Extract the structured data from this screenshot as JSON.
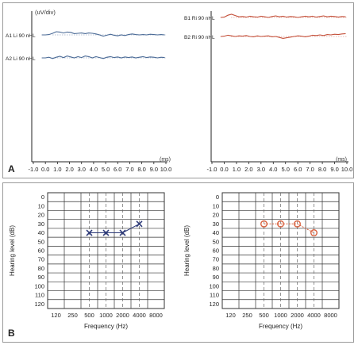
{
  "figure": {
    "panel_a_label": "A",
    "panel_b_label": "B"
  },
  "chart_data": [
    {
      "type": "line",
      "panel": "A",
      "side": "left",
      "ylabel": "(uV/div)",
      "xlabel": "(ms)",
      "x_ticks": [
        "-1.0",
        "0.0",
        "1.0",
        "2.0",
        "3.0",
        "4.0",
        "5.0",
        "6.0",
        "7.0",
        "8.0",
        "9.0",
        "10.0"
      ],
      "xlim": [
        -1.0,
        10.0
      ],
      "color": "#4a6a96",
      "series": [
        {
          "name": "A1 Li 90 nHL",
          "x": [
            -0.3,
            0.0,
            0.3,
            0.6,
            0.9,
            1.2,
            1.5,
            1.8,
            2.1,
            2.4,
            2.7,
            3.0,
            3.3,
            3.6,
            3.9,
            4.2,
            4.5,
            4.8,
            5.1,
            5.4,
            5.7,
            6.0,
            6.3,
            6.6,
            6.9,
            7.2,
            7.5,
            7.8,
            8.1,
            8.4,
            8.7,
            9.0,
            9.3,
            9.6,
            9.9
          ],
          "y": [
            0,
            0,
            0.05,
            0.25,
            0.5,
            0.45,
            0.3,
            0.45,
            0.4,
            0.2,
            0.25,
            0.3,
            0.2,
            0.3,
            0.25,
            0.15,
            0.0,
            -0.2,
            -0.05,
            0.1,
            -0.05,
            -0.15,
            0.0,
            -0.1,
            0.05,
            0.15,
            0.05,
            0.0,
            0.05,
            0.0,
            0.1,
            0.05,
            0.0,
            0.05,
            0.0
          ]
        },
        {
          "name": "A2 Li 90 nHL",
          "x": [
            -0.3,
            0.0,
            0.3,
            0.6,
            0.9,
            1.2,
            1.5,
            1.8,
            2.1,
            2.4,
            2.7,
            3.0,
            3.3,
            3.6,
            3.9,
            4.2,
            4.5,
            4.8,
            5.1,
            5.4,
            5.7,
            6.0,
            6.3,
            6.6,
            6.9,
            7.2,
            7.5,
            7.8,
            8.1,
            8.4,
            8.7,
            9.0,
            9.3,
            9.6,
            9.9
          ],
          "y": [
            0,
            0,
            0.1,
            -0.1,
            0.1,
            0.25,
            0.05,
            0.3,
            0.15,
            0.0,
            0.2,
            0.05,
            0.3,
            0.2,
            0.0,
            0.2,
            0.05,
            -0.1,
            0.1,
            0.2,
            0.05,
            0.15,
            0.0,
            0.15,
            0.05,
            0.15,
            0.0,
            0.1,
            0.2,
            0.05,
            0.15,
            0.1,
            0.0,
            0.1,
            0.05
          ]
        }
      ]
    },
    {
      "type": "line",
      "panel": "A",
      "side": "right",
      "xlabel": "(ms)",
      "x_ticks": [
        "-1.0",
        "0.0",
        "1.0",
        "2.0",
        "3.0",
        "4.0",
        "5.0",
        "6.0",
        "7.0",
        "8.0",
        "9.0",
        "10.0"
      ],
      "xlim": [
        -1.0,
        10.0
      ],
      "color": "#c4503a",
      "series": [
        {
          "name": "B1 Ri 90 nHL",
          "x": [
            -0.3,
            0.0,
            0.3,
            0.6,
            0.9,
            1.2,
            1.5,
            1.8,
            2.1,
            2.4,
            2.7,
            3.0,
            3.3,
            3.6,
            3.9,
            4.2,
            4.5,
            4.8,
            5.1,
            5.4,
            5.7,
            6.0,
            6.3,
            6.6,
            6.9,
            7.2,
            7.5,
            7.8,
            8.1,
            8.4,
            8.7,
            9.0,
            9.3,
            9.6,
            9.9
          ],
          "y": [
            0,
            0.05,
            0.35,
            0.5,
            0.3,
            0.1,
            0.15,
            0.05,
            0.2,
            0.1,
            0.05,
            0.2,
            0.1,
            0.0,
            0.15,
            0.25,
            0.1,
            0.2,
            0.05,
            0.15,
            0.1,
            0.0,
            0.1,
            0.2,
            0.1,
            0.2,
            0.05,
            0.15,
            0.25,
            0.1,
            0.2,
            0.15,
            0.05,
            0.15,
            0.1
          ]
        },
        {
          "name": "B2 Ri 90 nHL",
          "x": [
            -0.3,
            0.0,
            0.3,
            0.6,
            0.9,
            1.2,
            1.5,
            1.8,
            2.1,
            2.4,
            2.7,
            3.0,
            3.3,
            3.6,
            3.9,
            4.2,
            4.5,
            4.8,
            5.1,
            5.4,
            5.7,
            6.0,
            6.3,
            6.6,
            6.9,
            7.2,
            7.5,
            7.8,
            8.1,
            8.4,
            8.7,
            9.0,
            9.3,
            9.6,
            9.9
          ],
          "y": [
            0,
            0.05,
            0.2,
            0.1,
            0.0,
            0.1,
            0.05,
            0.15,
            0.0,
            -0.05,
            0.1,
            0.0,
            0.05,
            0.1,
            -0.05,
            0.0,
            -0.15,
            -0.3,
            -0.2,
            -0.1,
            0.0,
            0.1,
            0.05,
            -0.05,
            0.05,
            0.2,
            0.15,
            0.25,
            0.15,
            0.3,
            0.25,
            0.35,
            0.3,
            0.4,
            0.45
          ]
        }
      ]
    },
    {
      "type": "scatter",
      "panel": "B",
      "side": "left",
      "ylabel": "Hearing level (dB)",
      "xlabel": "Frequency (Hz)",
      "x_categories": [
        "120",
        "250",
        "500",
        "1000",
        "2000",
        "4000",
        "8000"
      ],
      "y_ticks": [
        0,
        10,
        20,
        30,
        40,
        50,
        60,
        70,
        80,
        90,
        100,
        110,
        120
      ],
      "ylim": [
        0,
        120
      ],
      "y_inverted": true,
      "grid": true,
      "marker": "x",
      "color": "#2d3a78",
      "series": [
        {
          "x": [
            "500",
            "1000",
            "2000",
            "4000"
          ],
          "y": [
            40,
            40,
            40,
            30
          ]
        }
      ]
    },
    {
      "type": "scatter",
      "panel": "B",
      "side": "right",
      "ylabel": "Hearing level (dB)",
      "xlabel": "Frequency (Hz)",
      "x_categories": [
        "120",
        "250",
        "500",
        "1000",
        "2000",
        "4000",
        "8000"
      ],
      "y_ticks": [
        0,
        10,
        20,
        30,
        40,
        50,
        60,
        70,
        80,
        90,
        100,
        110,
        120
      ],
      "ylim": [
        0,
        120
      ],
      "y_inverted": true,
      "grid": true,
      "marker": "o",
      "color": "#d9623f",
      "series": [
        {
          "x": [
            "500",
            "1000",
            "2000",
            "4000"
          ],
          "y": [
            30,
            30,
            30,
            40
          ]
        }
      ]
    }
  ]
}
